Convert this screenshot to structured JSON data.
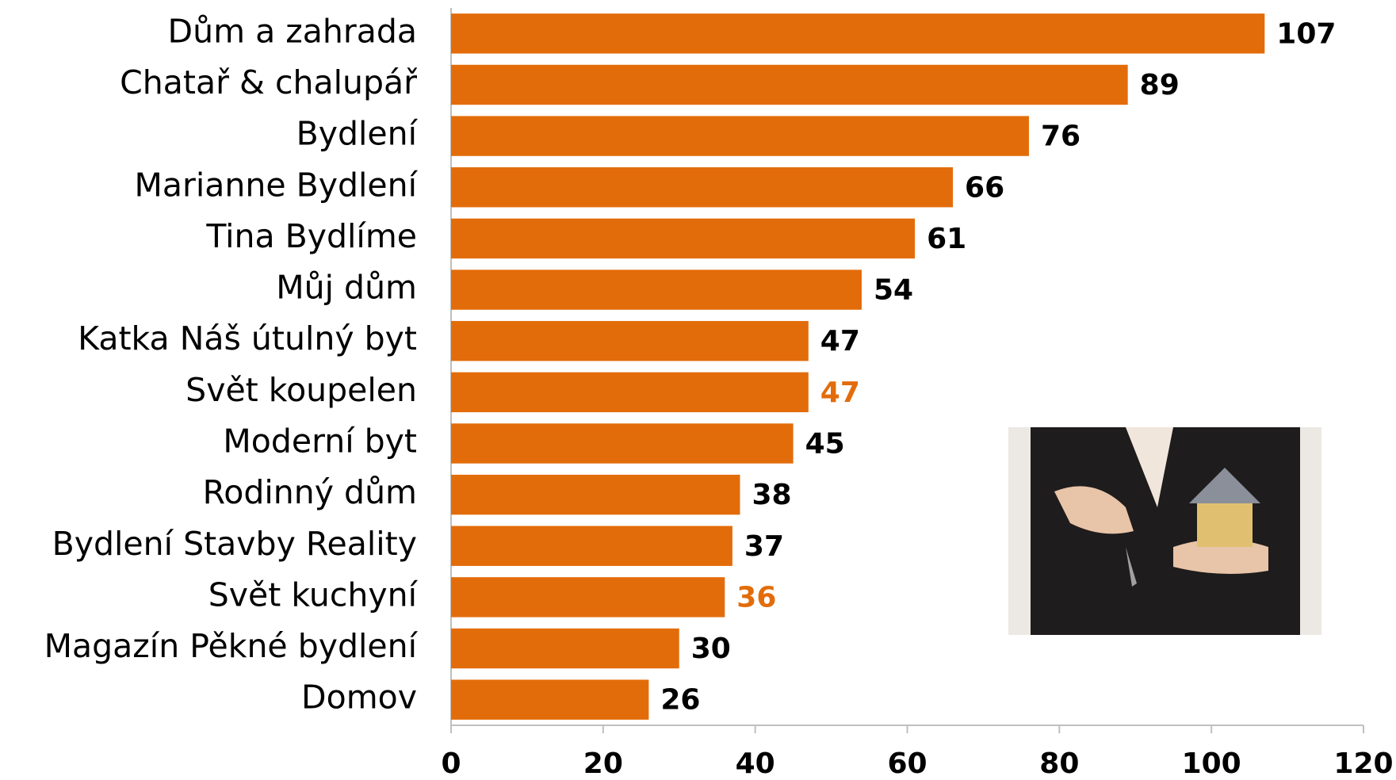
{
  "chart_data": {
    "type": "bar",
    "orientation": "horizontal",
    "categories": [
      "Dům a zahrada",
      "Chatař & chalupář",
      "Bydlení",
      "Marianne Bydlení",
      "Tina Bydlíme",
      "Můj dům",
      "Katka Náš útulný byt",
      "Svět koupelen",
      "Moderní byt",
      "Rodinný dům",
      "Bydlení Stavby Reality",
      "Svět kuchyní",
      "Magazín Pěkné bydlení",
      "Domov"
    ],
    "values": [
      107,
      89,
      76,
      66,
      61,
      54,
      47,
      47,
      45,
      38,
      37,
      36,
      30,
      26
    ],
    "color": "#e36c0a",
    "label_colors": [
      "#000000",
      "#000000",
      "#000000",
      "#000000",
      "#000000",
      "#000000",
      "#000000",
      "#e36c0a",
      "#000000",
      "#000000",
      "#000000",
      "#e36c0a",
      "#000000",
      "#000000"
    ],
    "xlim": [
      0,
      120
    ],
    "xticks": [
      0,
      20,
      40,
      60,
      80,
      100,
      120
    ],
    "grid": false
  }
}
